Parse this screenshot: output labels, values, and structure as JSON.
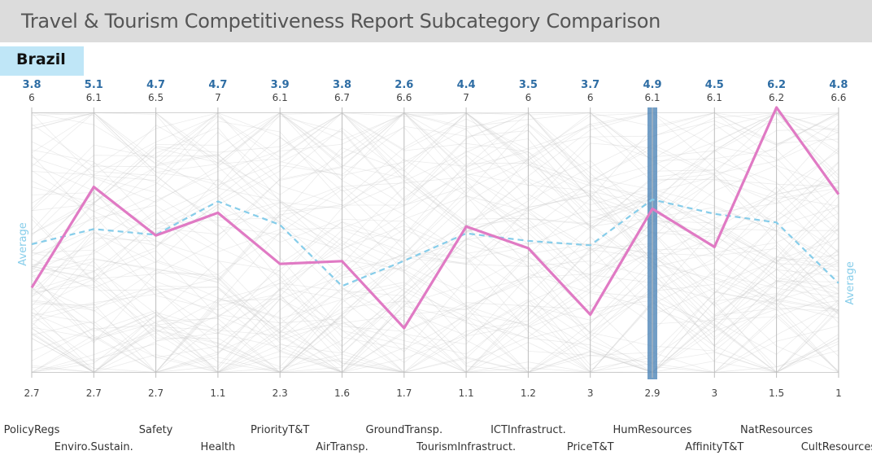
{
  "title": "Travel & Tourism Competitiveness Report Subcategory Comparison",
  "country": "Brazil",
  "average_label": "Average",
  "colors": {
    "title_bar": "#dcdcdc",
    "country_bg": "#bfe6f7",
    "selected_line": "#e07ac4",
    "average_line": "#86cdea",
    "value_text": "#2e6da4",
    "highlight_axis": "#4f86b8",
    "background_lines": "#c8c8c8"
  },
  "chart_data": {
    "type": "parallel_coordinates",
    "axes": [
      {
        "name": "PolicyRegs",
        "min": 2.7,
        "max": 6,
        "value": 3.8,
        "average": 4.33
      },
      {
        "name": "Enviro.Sustain.",
        "min": 2.7,
        "max": 6.1,
        "value": 5.1,
        "average": 4.57
      },
      {
        "name": "Safety",
        "min": 2.7,
        "max": 6.5,
        "value": 4.7,
        "average": 4.71
      },
      {
        "name": "Health",
        "min": 1.1,
        "max": 7,
        "value": 4.7,
        "average": 4.95
      },
      {
        "name": "PriorityT&T",
        "min": 2.3,
        "max": 6.1,
        "value": 3.9,
        "average": 4.45
      },
      {
        "name": "AirTransp.",
        "min": 1.6,
        "max": 6.7,
        "value": 3.8,
        "average": 3.33
      },
      {
        "name": "GroundTransp.",
        "min": 1.7,
        "max": 6.6,
        "value": 2.6,
        "average": 3.82
      },
      {
        "name": "TourismInfrastruct.",
        "min": 1.1,
        "max": 7,
        "value": 4.4,
        "average": 4.25
      },
      {
        "name": "ICTInfrastruct.",
        "min": 1.2,
        "max": 6,
        "value": 3.5,
        "average": 3.63
      },
      {
        "name": "PriceT&T",
        "min": 3,
        "max": 6,
        "value": 3.7,
        "average": 4.47
      },
      {
        "name": "HumResources",
        "min": 2.9,
        "max": 6.1,
        "value": 4.9,
        "average": 5.01,
        "highlighted": true
      },
      {
        "name": "AffinityT&T",
        "min": 3,
        "max": 6.1,
        "value": 4.5,
        "average": 4.88
      },
      {
        "name": "NatResources",
        "min": 1.5,
        "max": 6.2,
        "value": 6.2,
        "average": 4.2
      },
      {
        "name": "CultResources",
        "min": 1,
        "max": 6.6,
        "value": 4.8,
        "average": 2.96
      }
    ]
  }
}
